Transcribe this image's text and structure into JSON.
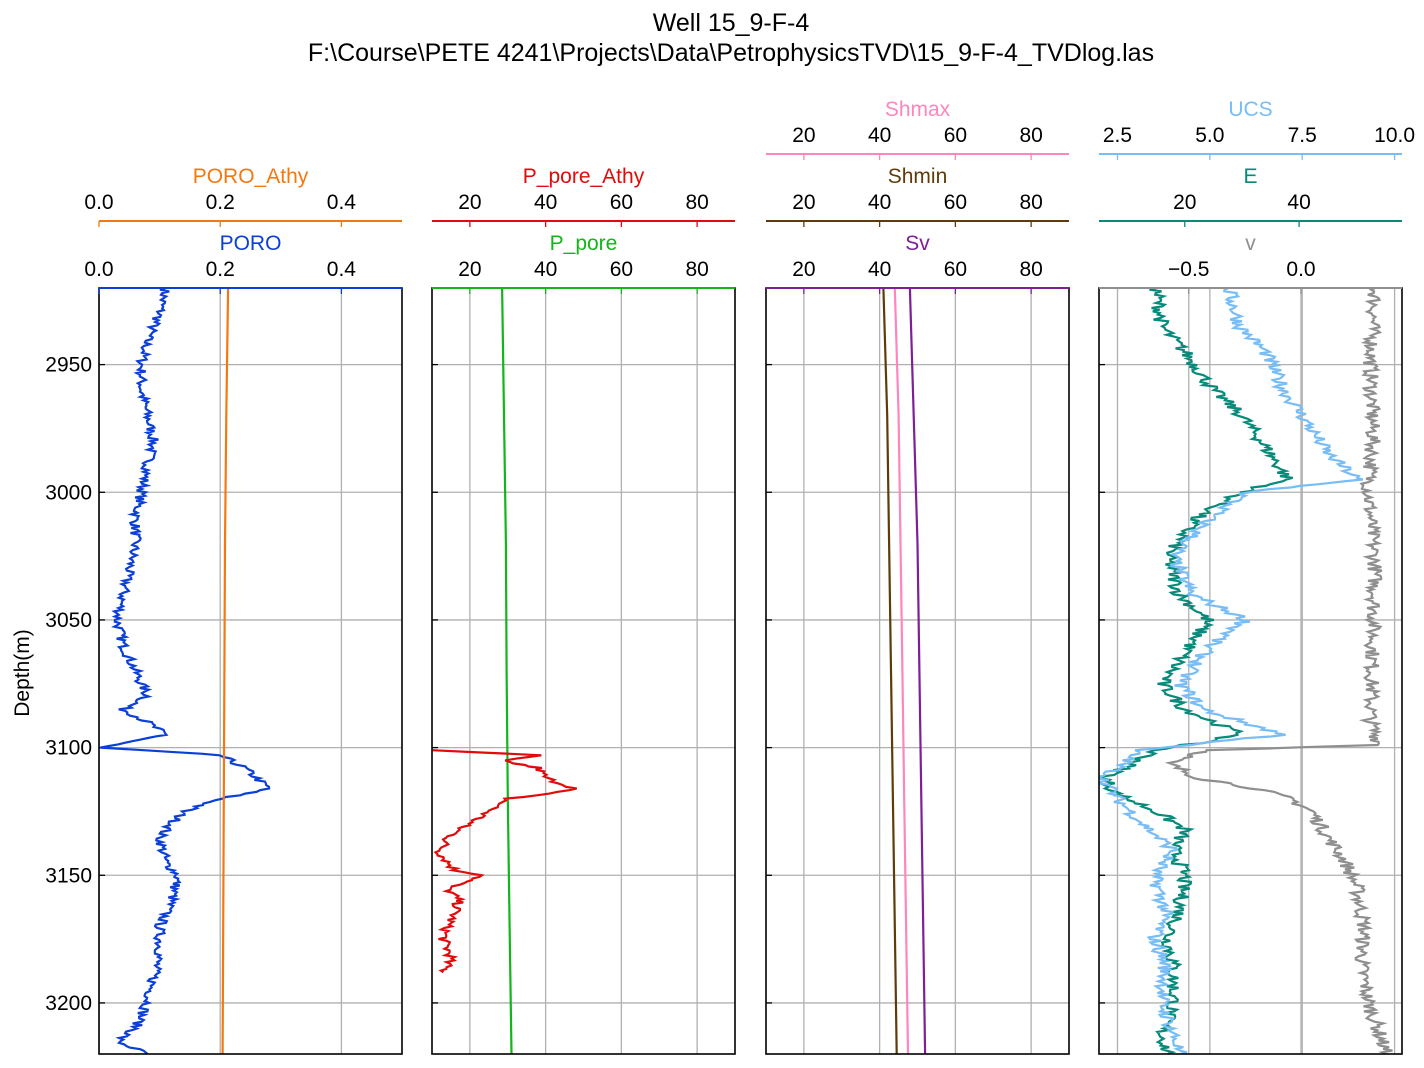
{
  "figure": {
    "title_line1": "Well 15_9-F-4",
    "title_line2": "F:\\Course\\PETE 4241\\Projects\\Data\\PetrophysicsTVD\\15_9-F-4_TVDlog.las",
    "ylabel": "Depth(m)",
    "depth_range": [
      2920,
      3220
    ],
    "depth_ticks": [
      2950,
      3000,
      3050,
      3100,
      3150,
      3200
    ]
  },
  "chart_data": [
    {
      "type": "line",
      "track": 1,
      "axes": [
        {
          "label": "PORO",
          "color": "#0b3fd6",
          "xlim": [
            0.0,
            0.5
          ],
          "ticks": [
            0.0,
            0.2,
            0.4
          ],
          "tick_labels": [
            "0.0",
            "0.2",
            "0.4"
          ]
        },
        {
          "label": "PORO_Athy",
          "color": "#f5780f",
          "xlim": [
            0.0,
            0.5
          ],
          "ticks": [
            0.0,
            0.2,
            0.4
          ],
          "tick_labels": [
            "0.0",
            "0.2",
            "0.4"
          ]
        }
      ],
      "grid": true,
      "series": [
        {
          "name": "PORO",
          "color": "#0b3fd6",
          "approx": true,
          "points": [
            [
              0.11,
              2920
            ],
            [
              0.1,
              2930
            ],
            [
              0.08,
              2940
            ],
            [
              0.07,
              2950
            ],
            [
              0.07,
              2960
            ],
            [
              0.08,
              2970
            ],
            [
              0.09,
              2980
            ],
            [
              0.08,
              2990
            ],
            [
              0.07,
              3000
            ],
            [
              0.06,
              3010
            ],
            [
              0.06,
              3020
            ],
            [
              0.05,
              3030
            ],
            [
              0.04,
              3040
            ],
            [
              0.03,
              3050
            ],
            [
              0.04,
              3060
            ],
            [
              0.06,
              3070
            ],
            [
              0.08,
              3080
            ],
            [
              0.04,
              3085
            ],
            [
              0.08,
              3090
            ],
            [
              0.11,
              3095
            ],
            [
              0.0,
              3100
            ],
            [
              0.2,
              3103
            ],
            [
              0.24,
              3108
            ],
            [
              0.28,
              3116
            ],
            [
              0.2,
              3120
            ],
            [
              0.14,
              3125
            ],
            [
              0.1,
              3135
            ],
            [
              0.11,
              3145
            ],
            [
              0.13,
              3150
            ],
            [
              0.12,
              3160
            ],
            [
              0.1,
              3170
            ],
            [
              0.1,
              3180
            ],
            [
              0.09,
              3190
            ],
            [
              0.08,
              3200
            ],
            [
              0.06,
              3210
            ],
            [
              0.03,
              3215
            ],
            [
              0.08,
              3220
            ]
          ]
        },
        {
          "name": "PORO_Athy",
          "color": "#f5780f",
          "approx": true,
          "points": [
            [
              0.213,
              2920
            ],
            [
              0.21,
              2970
            ],
            [
              0.208,
              3020
            ],
            [
              0.207,
              3070
            ],
            [
              0.206,
              3120
            ],
            [
              0.205,
              3170
            ],
            [
              0.204,
              3220
            ]
          ]
        }
      ]
    },
    {
      "type": "line",
      "track": 2,
      "axes": [
        {
          "label": "P_pore",
          "color": "#12b51a",
          "xlim": [
            10,
            90
          ],
          "ticks": [
            20,
            40,
            60,
            80
          ],
          "tick_labels": [
            "20",
            "40",
            "60",
            "80"
          ]
        },
        {
          "label": "P_pore_Athy",
          "color": "#e00b0b",
          "xlim": [
            10,
            90
          ],
          "ticks": [
            20,
            40,
            60,
            80
          ],
          "tick_labels": [
            "20",
            "40",
            "60",
            "80"
          ]
        }
      ],
      "grid": true,
      "series": [
        {
          "name": "P_pore",
          "color": "#12b51a",
          "approx": true,
          "points": [
            [
              28.5,
              2920
            ],
            [
              29,
              2970
            ],
            [
              29.5,
              3020
            ],
            [
              29.7,
              3070
            ],
            [
              30,
              3120
            ],
            [
              30.5,
              3170
            ],
            [
              31,
              3220
            ]
          ]
        },
        {
          "name": "P_pore_Athy",
          "color": "#e00b0b",
          "approx": true,
          "points": [
            [
              10,
              3101
            ],
            [
              38,
              3103
            ],
            [
              28,
              3105
            ],
            [
              38,
              3108
            ],
            [
              40,
              3112
            ],
            [
              48,
              3116
            ],
            [
              40,
              3118
            ],
            [
              30,
              3120
            ],
            [
              26,
              3124
            ],
            [
              22,
              3128
            ],
            [
              18,
              3131
            ],
            [
              14,
              3136
            ],
            [
              12,
              3141
            ],
            [
              16,
              3148
            ],
            [
              24,
              3150
            ],
            [
              14,
              3155
            ],
            [
              17,
              3160
            ],
            [
              16,
              3165
            ],
            [
              14,
              3170
            ],
            [
              13,
              3175
            ],
            [
              15,
              3182
            ],
            [
              13,
              3188
            ]
          ]
        }
      ]
    },
    {
      "type": "line",
      "track": 3,
      "axes": [
        {
          "label": "Sv",
          "color": "#7d1f96",
          "xlim": [
            10,
            90
          ],
          "ticks": [
            20,
            40,
            60,
            80
          ],
          "tick_labels": [
            "20",
            "40",
            "60",
            "80"
          ]
        },
        {
          "label": "Shmin",
          "color": "#5e3b0a",
          "xlim": [
            10,
            90
          ],
          "ticks": [
            20,
            40,
            60,
            80
          ],
          "tick_labels": [
            "20",
            "40",
            "60",
            "80"
          ]
        },
        {
          "label": "Shmax",
          "color": "#ff85bd",
          "xlim": [
            10,
            90
          ],
          "ticks": [
            20,
            40,
            60,
            80
          ],
          "tick_labels": [
            "20",
            "40",
            "60",
            "80"
          ]
        }
      ],
      "grid": true,
      "series": [
        {
          "name": "Sv",
          "color": "#7d1f96",
          "approx": true,
          "points": [
            [
              48,
              2920
            ],
            [
              49,
              2970
            ],
            [
              50,
              3020
            ],
            [
              50.5,
              3070
            ],
            [
              51,
              3120
            ],
            [
              51.5,
              3170
            ],
            [
              52,
              3220
            ]
          ]
        },
        {
          "name": "Shmin",
          "color": "#5e3b0a",
          "approx": true,
          "points": [
            [
              41,
              2920
            ],
            [
              42,
              2970
            ],
            [
              42.5,
              3020
            ],
            [
              43,
              3070
            ],
            [
              43.5,
              3120
            ],
            [
              44,
              3170
            ],
            [
              44.5,
              3220
            ]
          ]
        },
        {
          "name": "Shmax",
          "color": "#ff85bd",
          "approx": true,
          "points": [
            [
              44,
              2920
            ],
            [
              45,
              2970
            ],
            [
              45.5,
              3020
            ],
            [
              46,
              3070
            ],
            [
              46.5,
              3120
            ],
            [
              47,
              3170
            ],
            [
              47.5,
              3220
            ]
          ]
        }
      ]
    },
    {
      "type": "line",
      "track": 4,
      "axes": [
        {
          "label": "v",
          "color": "#8f8f8f",
          "xlim": [
            -0.9,
            0.45
          ],
          "ticks": [
            -0.5,
            0.0
          ],
          "tick_labels": [
            "−0.5",
            "0.0"
          ]
        },
        {
          "label": "E",
          "color": "#078a7a",
          "xlim": [
            5,
            58
          ],
          "ticks": [
            20,
            40
          ],
          "tick_labels": [
            "20",
            "40"
          ]
        },
        {
          "label": "UCS",
          "color": "#78bdf5",
          "xlim": [
            2.0,
            10.2
          ],
          "ticks": [
            2.5,
            5.0,
            7.5,
            10.0
          ],
          "tick_labels": [
            "2.5",
            "5.0",
            "7.5",
            "10.0"
          ]
        }
      ],
      "grid": true,
      "series": [
        {
          "name": "v",
          "color": "#8f8f8f",
          "approx": true,
          "points": [
            [
              0.33,
              2920
            ],
            [
              0.31,
              2950
            ],
            [
              0.32,
              2980
            ],
            [
              0.3,
              3000
            ],
            [
              0.33,
              3030
            ],
            [
              0.32,
              3060
            ],
            [
              0.31,
              3090
            ],
            [
              0.35,
              3099
            ],
            [
              -0.4,
              3101
            ],
            [
              -0.6,
              3106
            ],
            [
              -0.45,
              3112
            ],
            [
              -0.2,
              3116
            ],
            [
              -0.05,
              3120
            ],
            [
              0.05,
              3125
            ],
            [
              0.12,
              3135
            ],
            [
              0.2,
              3145
            ],
            [
              0.25,
              3155
            ],
            [
              0.28,
              3170
            ],
            [
              0.27,
              3185
            ],
            [
              0.3,
              3200
            ],
            [
              0.35,
              3212
            ],
            [
              0.38,
              3220
            ]
          ]
        },
        {
          "name": "E",
          "color": "#078a7a",
          "approx": true,
          "points": [
            [
              15,
              2920
            ],
            [
              16,
              2935
            ],
            [
              20,
              2945
            ],
            [
              25,
              2960
            ],
            [
              30,
              2970
            ],
            [
              35,
              2985
            ],
            [
              38,
              2995
            ],
            [
              30,
              3000
            ],
            [
              22,
              3010
            ],
            [
              17,
              3025
            ],
            [
              19,
              3040
            ],
            [
              24,
              3050
            ],
            [
              21,
              3060
            ],
            [
              16,
              3075
            ],
            [
              20,
              3085
            ],
            [
              30,
              3095
            ],
            [
              15,
              3101
            ],
            [
              12,
              3105
            ],
            [
              6,
              3112
            ],
            [
              8,
              3118
            ],
            [
              15,
              3125
            ],
            [
              20,
              3132
            ],
            [
              18,
              3140
            ],
            [
              20,
              3150
            ],
            [
              19,
              3165
            ],
            [
              17,
              3175
            ],
            [
              18,
              3185
            ],
            [
              18,
              3200
            ],
            [
              16,
              3212
            ],
            [
              17,
              3220
            ]
          ]
        },
        {
          "name": "UCS",
          "color": "#78bdf5",
          "approx": true,
          "points": [
            [
              5.5,
              2920
            ],
            [
              5.8,
              2935
            ],
            [
              6.5,
              2945
            ],
            [
              7.0,
              2960
            ],
            [
              7.5,
              2970
            ],
            [
              8.2,
              2985
            ],
            [
              9.0,
              2995
            ],
            [
              6.0,
              3000
            ],
            [
              5.0,
              3010
            ],
            [
              4.0,
              3025
            ],
            [
              4.5,
              3040
            ],
            [
              6.0,
              3050
            ],
            [
              5.0,
              3060
            ],
            [
              4.2,
              3075
            ],
            [
              4.8,
              3085
            ],
            [
              7.0,
              3095
            ],
            [
              3.0,
              3101
            ],
            [
              2.8,
              3105
            ],
            [
              2.1,
              3112
            ],
            [
              2.5,
              3120
            ],
            [
              3.2,
              3130
            ],
            [
              4.0,
              3140
            ],
            [
              3.5,
              3150
            ],
            [
              3.8,
              3165
            ],
            [
              3.5,
              3175
            ],
            [
              3.8,
              3185
            ],
            [
              3.7,
              3200
            ],
            [
              4.0,
              3212
            ],
            [
              4.2,
              3220
            ]
          ]
        }
      ]
    }
  ]
}
